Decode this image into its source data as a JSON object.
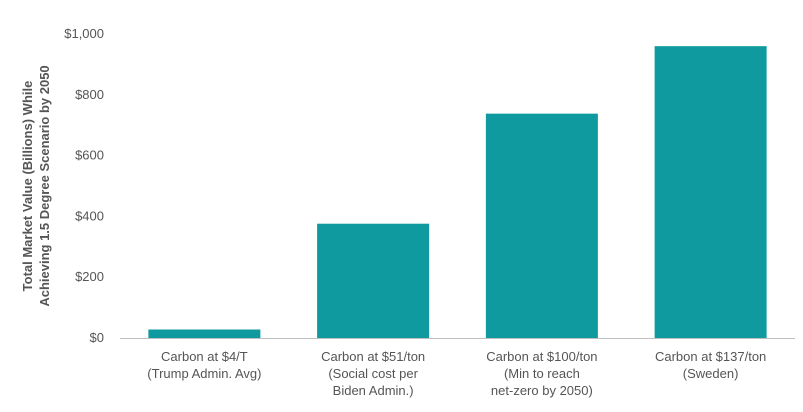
{
  "chart_data": {
    "type": "bar",
    "categories": [
      [
        "Carbon at $4/T",
        "(Trump Admin. Avg)"
      ],
      [
        "Carbon at $51/ton",
        "(Social cost per",
        "Biden Admin.)"
      ],
      [
        "Carbon at $100/ton",
        "(Min to reach",
        "net-zero by 2050)"
      ],
      [
        "Carbon at $137/ton",
        "(Sweden)"
      ]
    ],
    "values": [
      28,
      376,
      738,
      960
    ],
    "ylabel": [
      "Total Market Value (Billions) While",
      "Achieving 1.5 Degree Scenario by 2050"
    ],
    "ylim": [
      0,
      1000
    ],
    "yticks": [
      0,
      200,
      400,
      600,
      800,
      1000
    ],
    "ytick_labels": [
      "$0",
      "$200",
      "$400",
      "$600",
      "$800",
      "$1,000"
    ],
    "bar_color": "#0f9aa0",
    "grid": false,
    "legend": "none"
  }
}
